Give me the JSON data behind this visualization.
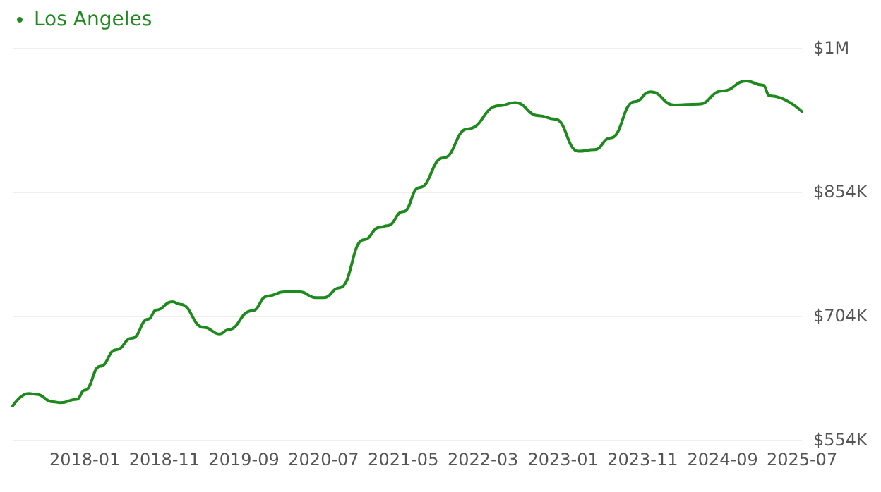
{
  "chart_data": {
    "type": "line",
    "x": [
      "2017-04",
      "2017-06",
      "2017-07",
      "2017-09",
      "2017-10",
      "2017-12",
      "2018-01",
      "2018-03",
      "2018-05",
      "2018-07",
      "2018-09",
      "2018-10",
      "2018-12",
      "2019-01",
      "2019-04",
      "2019-06",
      "2019-07",
      "2019-10",
      "2019-12",
      "2020-02",
      "2020-04",
      "2020-06",
      "2020-07",
      "2020-09",
      "2020-12",
      "2021-02",
      "2021-03",
      "2021-05",
      "2021-07",
      "2021-10",
      "2022-01",
      "2022-05",
      "2022-07",
      "2022-10",
      "2022-12",
      "2023-03",
      "2023-05",
      "2023-07",
      "2023-10",
      "2023-12",
      "2024-03",
      "2024-06",
      "2024-09",
      "2024-12",
      "2025-02",
      "2025-03",
      "2025-07"
    ],
    "series": [
      {
        "name": "Los Angeles",
        "color": "#1e8a1e",
        "values": [
          595000,
          610000,
          609000,
          600000,
          599000,
          603000,
          614000,
          643000,
          663000,
          677000,
          700000,
          711000,
          721000,
          718000,
          690000,
          682000,
          687000,
          710000,
          728000,
          733000,
          733000,
          726000,
          726000,
          738000,
          796000,
          811000,
          813000,
          830000,
          859000,
          895000,
          930000,
          958000,
          962000,
          946000,
          942000,
          903000,
          905000,
          919000,
          963000,
          975000,
          959000,
          960000,
          976000,
          988000,
          983000,
          970000,
          951000
        ]
      }
    ],
    "xlim": [
      "2017-04",
      "2025-07"
    ],
    "xticks": [
      "2018-01",
      "2018-11",
      "2019-09",
      "2020-07",
      "2021-05",
      "2022-03",
      "2023-01",
      "2023-11",
      "2024-09",
      "2025-07"
    ],
    "ylim": [
      554000,
      1028000
    ],
    "yticks": [
      {
        "value": 554000,
        "label": "$554K"
      },
      {
        "value": 704000,
        "label": "$704K"
      },
      {
        "value": 854000,
        "label": "$854K"
      },
      {
        "value": 1028000,
        "label": "$1M"
      }
    ],
    "grid": "y",
    "legend": "top left",
    "marker": "none",
    "line_style": "solid"
  }
}
